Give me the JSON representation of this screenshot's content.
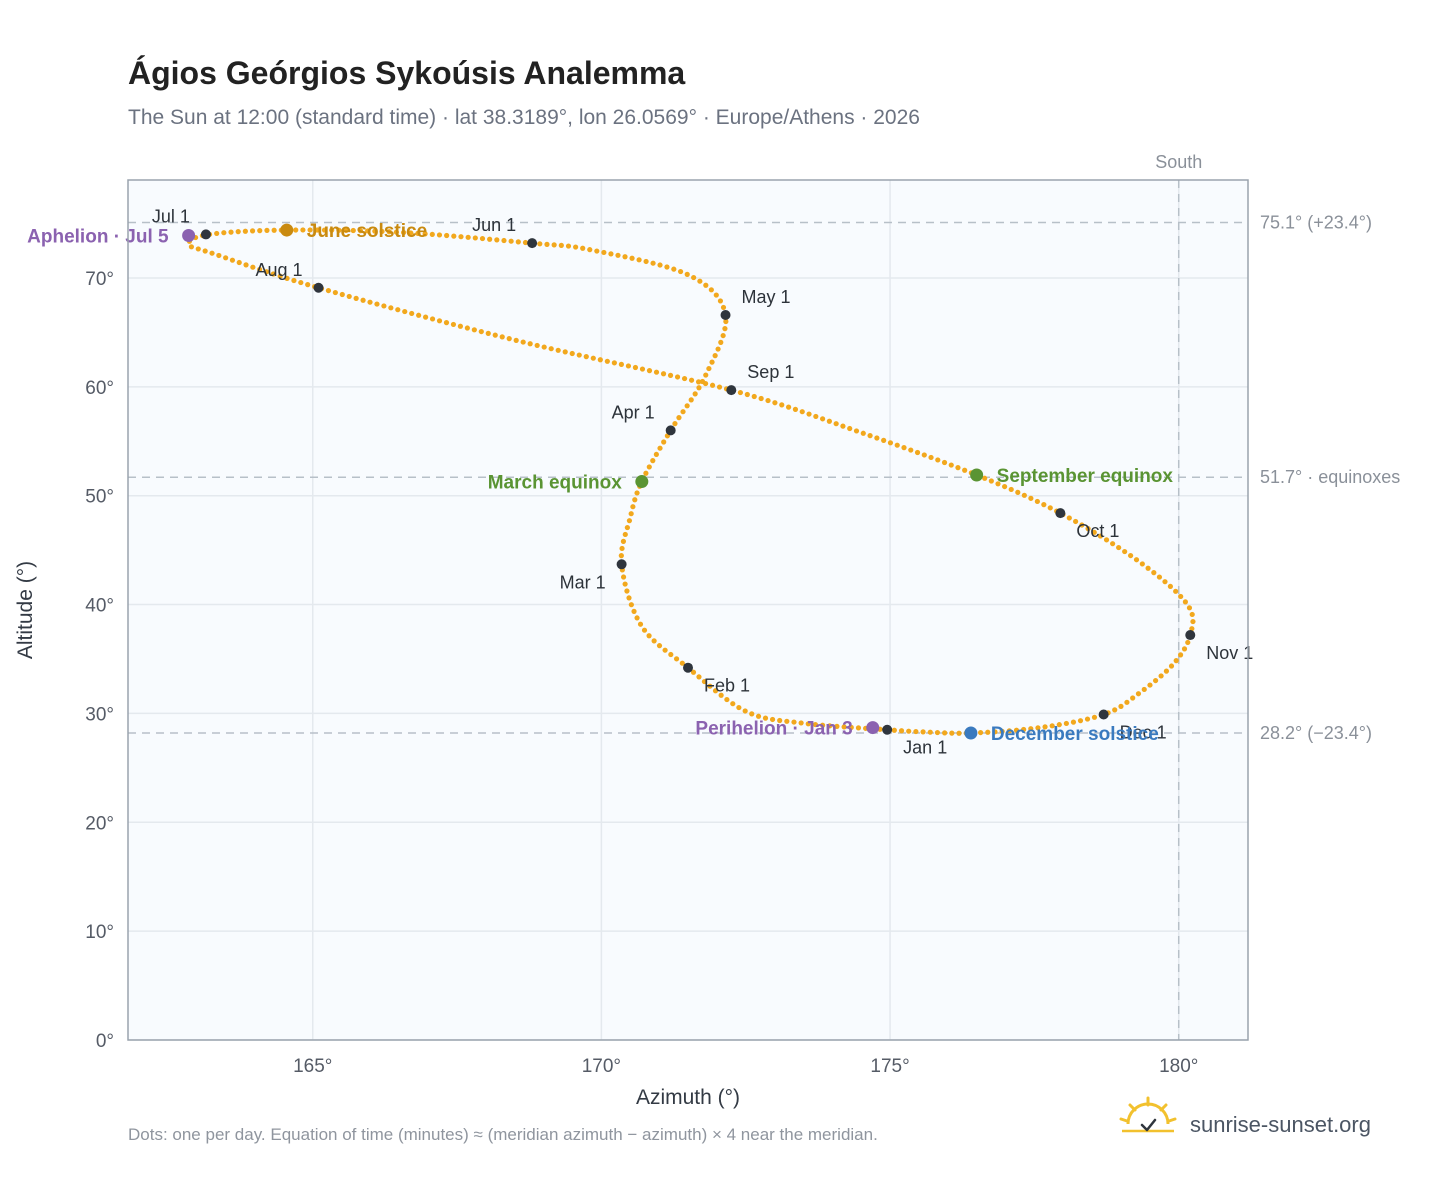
{
  "colors": {
    "path": "#f2a81d",
    "month_marker": "#2f353d",
    "june_solstice": "#c98a10",
    "equinox": "#5a9433",
    "december_solstice": "#3a7abf",
    "perihelion": "#8b62b0",
    "aphelion": "#8b62b0",
    "plot_bg": "#f8fbfe",
    "grid": "#e4e9ee",
    "frame": "#9aa3ad",
    "ref_line": "#b7c0c8",
    "brand_sun": "#f2c12e"
  },
  "header": {
    "title": "Ágios Geórgios Sykoúsis Analemma",
    "subtitle": "The Sun at 12:00 (standard time) · lat 38.3189°, lon 26.0569° · Europe/Athens · 2026"
  },
  "footer": {
    "note": "Dots: one per day. Equation of time (minutes) ≈ (meridian azimuth − azimuth) × 4 near the meridian.",
    "brand": "sunrise-sunset.org",
    "brand_icon": "sun-logo-icon"
  },
  "chart_data": {
    "type": "scatter",
    "title": "Ágios Geórgios Sykoúsis Analemma",
    "subtitle": "The Sun at 12:00 (standard time) · lat 38.3189°, lon 26.0569° · Europe/Athens · 2026",
    "xlabel": "Azimuth (°)",
    "ylabel": "Altitude (°)",
    "xlim": [
      161.8,
      181.2
    ],
    "ylim": [
      0,
      79
    ],
    "xticks": [
      165,
      170,
      175,
      180
    ],
    "xtick_labels": [
      "165°",
      "170°",
      "175°",
      "180°"
    ],
    "yticks": [
      0,
      10,
      20,
      30,
      40,
      50,
      60,
      70
    ],
    "ytick_labels": [
      "0°",
      "10°",
      "20°",
      "30°",
      "40°",
      "50°",
      "60°",
      "70°"
    ],
    "grid": true,
    "reference_lines": {
      "horizontal": [
        {
          "y": 75.1,
          "label": "75.1° (+23.4°)"
        },
        {
          "y": 51.7,
          "label": "51.7° · equinoxes"
        },
        {
          "y": 28.2,
          "label": "28.2° (−23.4°)"
        }
      ],
      "vertical": [
        {
          "x": 180,
          "label": "South"
        }
      ]
    },
    "series": [
      {
        "name": "Sun position",
        "description_points": "daily analemma path",
        "points": [
          {
            "x": 174.95,
            "y": 28.5
          },
          {
            "x": 173.5,
            "y": 29.1
          },
          {
            "x": 172.5,
            "y": 30.2
          },
          {
            "x": 171.5,
            "y": 34.2
          },
          {
            "x": 170.7,
            "y": 38.0
          },
          {
            "x": 170.35,
            "y": 43.7
          },
          {
            "x": 170.5,
            "y": 48.0
          },
          {
            "x": 170.7,
            "y": 51.3
          },
          {
            "x": 171.2,
            "y": 56.0
          },
          {
            "x": 171.8,
            "y": 61.0
          },
          {
            "x": 172.15,
            "y": 66.6
          },
          {
            "x": 171.5,
            "y": 70.3
          },
          {
            "x": 169.8,
            "y": 72.6
          },
          {
            "x": 168.8,
            "y": 73.2
          },
          {
            "x": 166.5,
            "y": 74.2
          },
          {
            "x": 164.5,
            "y": 74.4
          },
          {
            "x": 163.2,
            "y": 74.0
          },
          {
            "x": 162.85,
            "y": 73.1
          },
          {
            "x": 163.3,
            "y": 72.2
          },
          {
            "x": 165.1,
            "y": 69.1
          },
          {
            "x": 168.5,
            "y": 64.3
          },
          {
            "x": 172.25,
            "y": 59.7
          },
          {
            "x": 174.5,
            "y": 55.8
          },
          {
            "x": 176.5,
            "y": 51.9
          },
          {
            "x": 177.95,
            "y": 48.4
          },
          {
            "x": 179.3,
            "y": 44.0
          },
          {
            "x": 180.15,
            "y": 40.0
          },
          {
            "x": 180.2,
            "y": 37.2
          },
          {
            "x": 179.9,
            "y": 34.5
          },
          {
            "x": 179.3,
            "y": 31.8
          },
          {
            "x": 178.7,
            "y": 29.9
          },
          {
            "x": 177.6,
            "y": 28.7
          },
          {
            "x": 176.4,
            "y": 28.2
          },
          {
            "x": 175.6,
            "y": 28.3
          },
          {
            "x": 174.95,
            "y": 28.5
          }
        ]
      }
    ],
    "month_markers": [
      {
        "label": "Jan 1",
        "x": 174.95,
        "y": 28.5,
        "anchor": "below-right"
      },
      {
        "label": "Feb 1",
        "x": 171.5,
        "y": 34.2,
        "anchor": "below-right"
      },
      {
        "label": "Mar 1",
        "x": 170.35,
        "y": 43.7,
        "anchor": "below-left"
      },
      {
        "label": "Apr 1",
        "x": 171.2,
        "y": 56.0,
        "anchor": "above-left"
      },
      {
        "label": "May 1",
        "x": 172.15,
        "y": 66.6,
        "anchor": "above-right"
      },
      {
        "label": "Jun 1",
        "x": 168.8,
        "y": 73.2,
        "anchor": "above-left"
      },
      {
        "label": "Jul 1",
        "x": 163.15,
        "y": 74.0,
        "anchor": "above-left"
      },
      {
        "label": "Aug 1",
        "x": 165.1,
        "y": 69.1,
        "anchor": "above-left"
      },
      {
        "label": "Sep 1",
        "x": 172.25,
        "y": 59.7,
        "anchor": "above-right"
      },
      {
        "label": "Oct 1",
        "x": 177.95,
        "y": 48.4,
        "anchor": "below-right"
      },
      {
        "label": "Nov 1",
        "x": 180.2,
        "y": 37.2,
        "anchor": "below-right"
      },
      {
        "label": "Dec 1",
        "x": 178.7,
        "y": 29.9,
        "anchor": "below-right"
      }
    ],
    "events": [
      {
        "label": "June solstice",
        "x": 164.55,
        "y": 74.4,
        "color_key": "june_solstice",
        "side": "right"
      },
      {
        "label": "March equinox",
        "x": 170.7,
        "y": 51.3,
        "color_key": "equinox",
        "side": "left"
      },
      {
        "label": "September equinox",
        "x": 176.5,
        "y": 51.9,
        "color_key": "equinox",
        "side": "right"
      },
      {
        "label": "December solstice",
        "x": 176.4,
        "y": 28.2,
        "color_key": "december_solstice",
        "side": "right"
      },
      {
        "label": "Perihelion · Jan 3",
        "x": 174.7,
        "y": 28.7,
        "color_key": "perihelion",
        "side": "left"
      },
      {
        "label": "Aphelion · Jul 5",
        "x": 162.85,
        "y": 73.9,
        "color_key": "aphelion",
        "side": "left"
      }
    ]
  }
}
